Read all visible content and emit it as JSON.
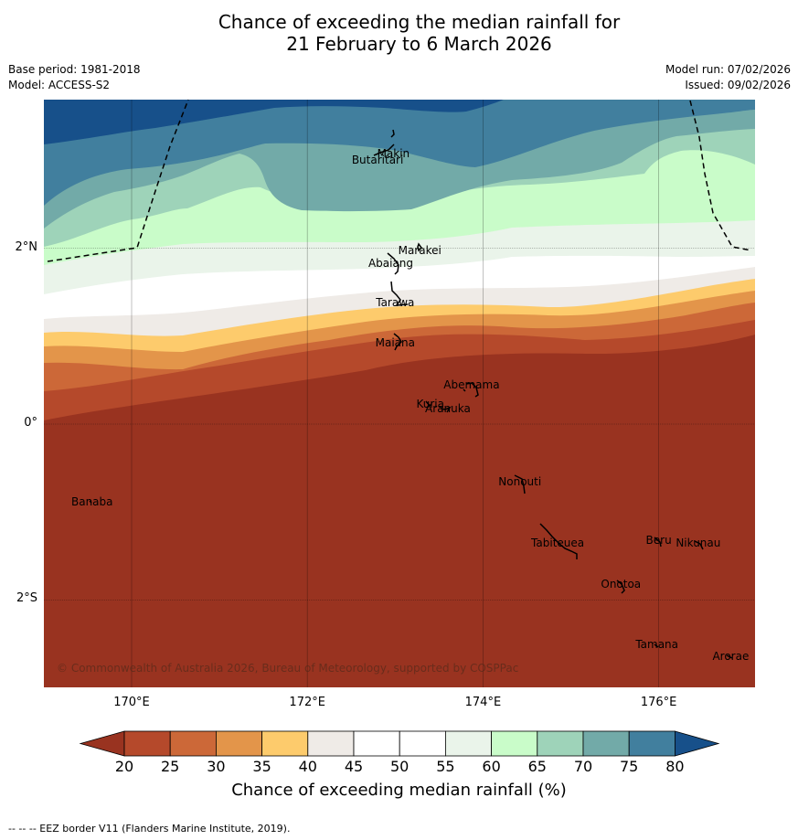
{
  "title": {
    "line1": "Chance of exceeding the median rainfall for",
    "line2": "21 February to 6 March 2026"
  },
  "meta": {
    "base_period": "Base period: 1981-2018",
    "model": "Model: ACCESS-S2",
    "model_run": "Model run: 07/02/2026",
    "issued": "Issued: 09/02/2026"
  },
  "map": {
    "lon_range": [
      169,
      177.1
    ],
    "lat_range": [
      -3,
      3.7
    ],
    "lon_ticks": [
      {
        "value": 170,
        "label": "170°E"
      },
      {
        "value": 172,
        "label": "172°E"
      },
      {
        "value": 174,
        "label": "174°E"
      },
      {
        "value": 176,
        "label": "176°E"
      }
    ],
    "lat_ticks": [
      {
        "value": 2,
        "label": "2°N"
      },
      {
        "value": 0,
        "label": "0°"
      },
      {
        "value": -2,
        "label": "2°S"
      }
    ],
    "places": [
      {
        "name": "Makin",
        "lon": 172.98,
        "lat": 3.08
      },
      {
        "name": "Butaritari",
        "lon": 172.8,
        "lat": 3.0
      },
      {
        "name": "Marakei",
        "lon": 173.28,
        "lat": 1.98
      },
      {
        "name": "Abaiang",
        "lon": 172.95,
        "lat": 1.83
      },
      {
        "name": "Tarawa",
        "lon": 173.0,
        "lat": 1.38
      },
      {
        "name": "Maiana",
        "lon": 173.0,
        "lat": 0.93
      },
      {
        "name": "Abemama",
        "lon": 173.87,
        "lat": 0.45
      },
      {
        "name": "Kuria",
        "lon": 173.4,
        "lat": 0.23
      },
      {
        "name": "Aranuka",
        "lon": 173.6,
        "lat": 0.18
      },
      {
        "name": "Banaba",
        "lon": 169.55,
        "lat": -0.88
      },
      {
        "name": "Nonouti",
        "lon": 174.42,
        "lat": -0.65
      },
      {
        "name": "Tabiteuea",
        "lon": 174.85,
        "lat": -1.35
      },
      {
        "name": "Beru",
        "lon": 176.0,
        "lat": -1.32
      },
      {
        "name": "Nikunau",
        "lon": 176.45,
        "lat": -1.35
      },
      {
        "name": "Onotoa",
        "lon": 175.57,
        "lat": -1.82
      },
      {
        "name": "Tamana",
        "lon": 175.98,
        "lat": -2.5
      },
      {
        "name": "Arorae",
        "lon": 176.82,
        "lat": -2.64
      }
    ],
    "copyright": "© Commonwealth of Australia 2026, Bureau of Meteorology, supported by COSPPac"
  },
  "colorbar": {
    "title": "Chance of exceeding median rainfall (%)",
    "ticks": [
      "20",
      "25",
      "30",
      "35",
      "40",
      "45",
      "50",
      "55",
      "60",
      "65",
      "70",
      "75",
      "80"
    ],
    "colors": [
      "#993320",
      "#b5492b",
      "#cc6838",
      "#e3954a",
      "#fdcb6c",
      "#efebe7",
      "#ffffff",
      "#ffffff",
      "#eaf4ea",
      "#c9fcc9",
      "#9ed3b9",
      "#72aaa8",
      "#417f9e",
      "#17508a"
    ]
  },
  "footer": "--  --  -- EEZ border V11 (Flanders Marine Institute, 2019)."
}
